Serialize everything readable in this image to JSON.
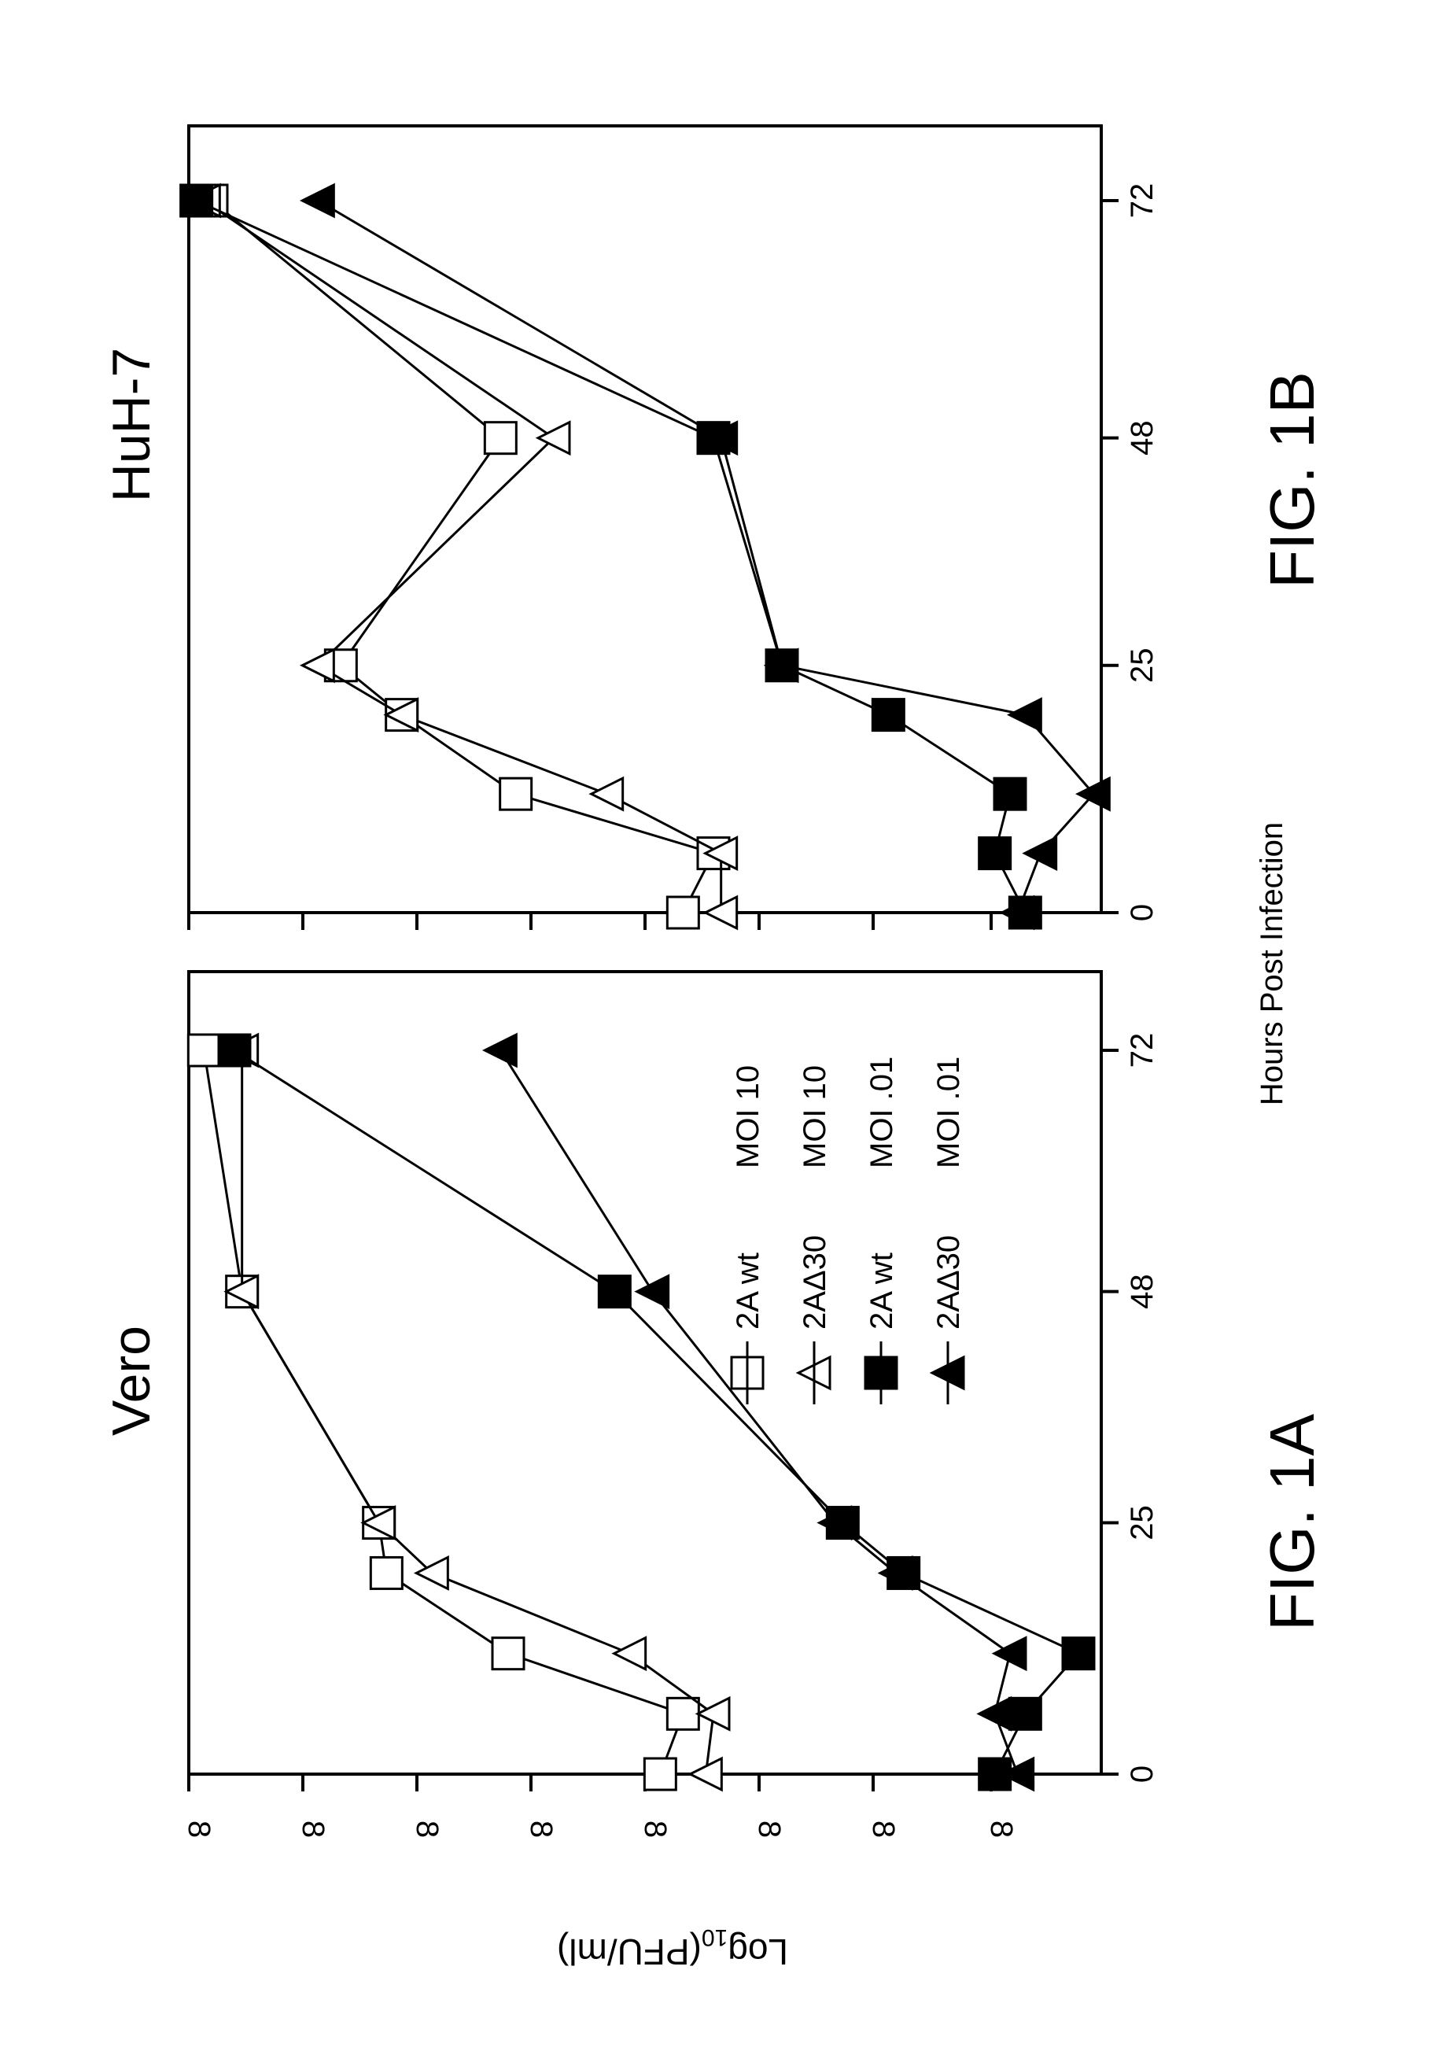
{
  "figure": {
    "shared_xlabel": "Hours Post Infection",
    "ylabel_main": "Log",
    "ylabel_sub": "10",
    "ylabel_units": "(PFU/ml)",
    "y_tick_label": "8"
  },
  "style": {
    "ink": "#000000",
    "paper": "#ffffff"
  },
  "chart_data": [
    {
      "type": "line",
      "title": "Vero",
      "caption": "FIG. 1A",
      "xlabel": "Hours Post Infection",
      "ylabel": "Log10(PFU/ml)",
      "x_ticks": [
        0,
        25,
        48,
        72
      ],
      "xlim": [
        0,
        78
      ],
      "ylim": [
        0,
        12
      ],
      "grid": false,
      "legend_position": "bottom-right",
      "legend": [
        {
          "symbol": "open-square",
          "line": "—",
          "name": "2A wt",
          "moi": "MOI 10"
        },
        {
          "symbol": "open-triangle",
          "line": "—",
          "name": "2AΔ30",
          "moi": "MOI 10"
        },
        {
          "symbol": "filled-square",
          "line": "—",
          "name": "2A wt",
          "moi": "MOI .01"
        },
        {
          "symbol": "filled-triangle",
          "line": "—",
          "name": "2AΔ30",
          "moi": "MOI .01"
        }
      ],
      "series": [
        {
          "name": "2A wt",
          "moi": "MOI 10",
          "marker": "open-square",
          "x": [
            0,
            6,
            12,
            20,
            25,
            48,
            72
          ],
          "y": [
            5.8,
            5.5,
            7.8,
            9.4,
            9.5,
            11.3,
            11.8
          ]
        },
        {
          "name": "2AΔ30",
          "moi": "MOI 10",
          "marker": "open-triangle",
          "x": [
            0,
            6,
            12,
            20,
            25,
            48,
            72
          ],
          "y": [
            5.2,
            5.1,
            6.2,
            8.8,
            9.5,
            11.3,
            11.3
          ]
        },
        {
          "name": "2A wt",
          "moi": "MOI .01",
          "marker": "filled-square",
          "x": [
            0,
            6,
            12,
            20,
            25,
            48,
            72
          ],
          "y": [
            1.4,
            1.0,
            0.3,
            2.6,
            3.4,
            6.4,
            11.4
          ]
        },
        {
          "name": "2AΔ30",
          "moi": "MOI .01",
          "marker": "filled-triangle",
          "x": [
            0,
            6,
            12,
            20,
            25,
            48,
            72
          ],
          "y": [
            1.1,
            1.4,
            1.2,
            2.7,
            3.5,
            5.9,
            7.9
          ]
        }
      ]
    },
    {
      "type": "line",
      "title": "HuH-7",
      "caption": "FIG. 1B",
      "xlabel": "Hours Post Infection",
      "ylabel": "Log10(PFU/ml)",
      "x_ticks": [
        0,
        25,
        48,
        72
      ],
      "xlim": [
        0,
        78
      ],
      "ylim": [
        0,
        12
      ],
      "grid": false,
      "series": [
        {
          "name": "2A wt",
          "moi": "MOI 10",
          "marker": "open-square",
          "x": [
            0,
            6,
            12,
            20,
            25,
            48,
            72
          ],
          "y": [
            5.5,
            5.1,
            7.7,
            9.2,
            10.0,
            7.9,
            11.7
          ]
        },
        {
          "name": "2AΔ30",
          "moi": "MOI 10",
          "marker": "open-triangle",
          "x": [
            0,
            6,
            12,
            20,
            25,
            48,
            72
          ],
          "y": [
            5.0,
            5.0,
            6.5,
            9.2,
            10.3,
            7.2,
            11.8
          ]
        },
        {
          "name": "2A wt",
          "moi": "MOI .01",
          "marker": "filled-square",
          "x": [
            0,
            6,
            12,
            20,
            25,
            48,
            72
          ],
          "y": [
            1.0,
            1.4,
            1.2,
            2.8,
            4.2,
            5.1,
            11.9
          ]
        },
        {
          "name": "2AΔ30",
          "moi": "MOI .01",
          "marker": "filled-triangle",
          "x": [
            0,
            6,
            12,
            20,
            25,
            48,
            72
          ],
          "y": [
            1.1,
            0.8,
            0.1,
            1.0,
            4.2,
            5.0,
            10.3
          ]
        }
      ]
    }
  ]
}
